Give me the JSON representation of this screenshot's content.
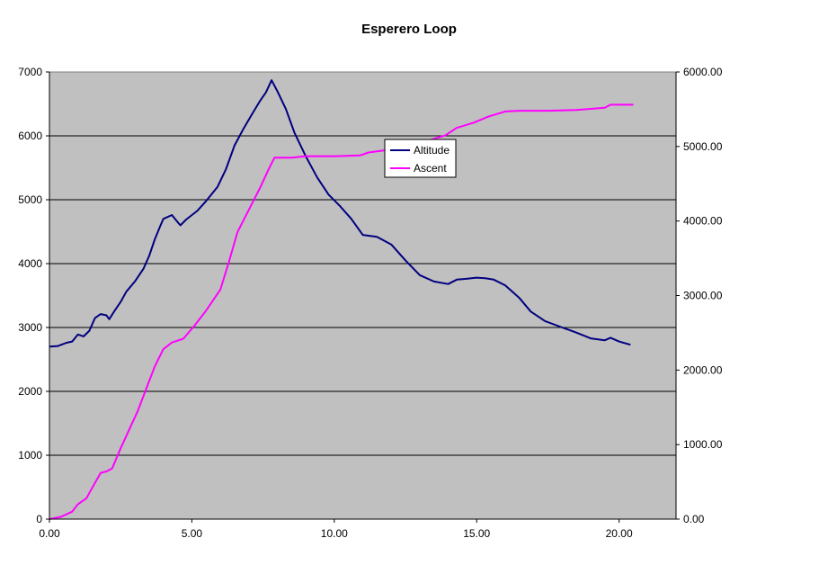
{
  "chart_data": {
    "type": "line",
    "title": "Esperero Loop",
    "xlabel": "",
    "ylabel": "",
    "y2label": "",
    "xlim": [
      0,
      22
    ],
    "ylim": [
      0,
      7000
    ],
    "y2lim": [
      0,
      6000
    ],
    "x_ticks": [
      "0.00",
      "5.00",
      "10.00",
      "15.00",
      "20.00"
    ],
    "y_ticks": [
      "0",
      "1000",
      "2000",
      "3000",
      "4000",
      "5000",
      "6000",
      "7000"
    ],
    "y2_ticks": [
      "0.00",
      "1000.00",
      "2000.00",
      "3000.00",
      "4000.00",
      "5000.00",
      "6000.00"
    ],
    "grid": "horizontal",
    "legend_position": "center",
    "colors": {
      "plot_background": "#c0c0c0",
      "gridline": "#000000",
      "altitude": "#000080",
      "ascent": "#ff00ff"
    },
    "series": [
      {
        "name": "Altitude",
        "axis": "left",
        "color": "#000080",
        "points": [
          [
            0,
            2700
          ],
          [
            0.3,
            2710
          ],
          [
            0.6,
            2760
          ],
          [
            0.8,
            2780
          ],
          [
            1.0,
            2890
          ],
          [
            1.2,
            2860
          ],
          [
            1.4,
            2950
          ],
          [
            1.6,
            3150
          ],
          [
            1.8,
            3210
          ],
          [
            2.0,
            3190
          ],
          [
            2.1,
            3130
          ],
          [
            2.3,
            3270
          ],
          [
            2.5,
            3400
          ],
          [
            2.7,
            3560
          ],
          [
            3.0,
            3720
          ],
          [
            3.3,
            3920
          ],
          [
            3.5,
            4120
          ],
          [
            3.7,
            4380
          ],
          [
            3.9,
            4600
          ],
          [
            4.0,
            4700
          ],
          [
            4.3,
            4760
          ],
          [
            4.5,
            4650
          ],
          [
            4.6,
            4600
          ],
          [
            4.8,
            4690
          ],
          [
            5.2,
            4830
          ],
          [
            5.5,
            4980
          ],
          [
            5.9,
            5200
          ],
          [
            6.2,
            5480
          ],
          [
            6.5,
            5850
          ],
          [
            6.8,
            6100
          ],
          [
            7.1,
            6330
          ],
          [
            7.4,
            6550
          ],
          [
            7.6,
            6680
          ],
          [
            7.8,
            6870
          ],
          [
            8.0,
            6700
          ],
          [
            8.3,
            6420
          ],
          [
            8.6,
            6050
          ],
          [
            9.0,
            5680
          ],
          [
            9.4,
            5350
          ],
          [
            9.8,
            5080
          ],
          [
            10.2,
            4900
          ],
          [
            10.6,
            4700
          ],
          [
            11.0,
            4450
          ],
          [
            11.5,
            4420
          ],
          [
            12.0,
            4300
          ],
          [
            12.5,
            4050
          ],
          [
            13.0,
            3820
          ],
          [
            13.5,
            3720
          ],
          [
            14.0,
            3680
          ],
          [
            14.3,
            3750
          ],
          [
            14.6,
            3760
          ],
          [
            15.0,
            3780
          ],
          [
            15.3,
            3770
          ],
          [
            15.6,
            3750
          ],
          [
            16.0,
            3660
          ],
          [
            16.5,
            3460
          ],
          [
            16.9,
            3250
          ],
          [
            17.4,
            3100
          ],
          [
            18.0,
            3000
          ],
          [
            18.5,
            2920
          ],
          [
            19.0,
            2830
          ],
          [
            19.5,
            2800
          ],
          [
            19.7,
            2840
          ],
          [
            20.0,
            2780
          ],
          [
            20.4,
            2730
          ]
        ]
      },
      {
        "name": "Ascent",
        "axis": "right",
        "color": "#ff00ff",
        "points": [
          [
            0,
            0
          ],
          [
            0.4,
            30
          ],
          [
            0.8,
            100
          ],
          [
            1.0,
            200
          ],
          [
            1.3,
            280
          ],
          [
            1.5,
            420
          ],
          [
            1.8,
            620
          ],
          [
            2.0,
            640
          ],
          [
            2.2,
            680
          ],
          [
            2.5,
            950
          ],
          [
            2.8,
            1200
          ],
          [
            3.1,
            1450
          ],
          [
            3.4,
            1750
          ],
          [
            3.7,
            2050
          ],
          [
            4.0,
            2280
          ],
          [
            4.3,
            2370
          ],
          [
            4.7,
            2420
          ],
          [
            5.1,
            2600
          ],
          [
            5.5,
            2800
          ],
          [
            6.0,
            3080
          ],
          [
            6.3,
            3450
          ],
          [
            6.6,
            3850
          ],
          [
            7.0,
            4150
          ],
          [
            7.4,
            4450
          ],
          [
            7.7,
            4700
          ],
          [
            7.9,
            4850
          ],
          [
            8.5,
            4850
          ],
          [
            9.0,
            4870
          ],
          [
            10.0,
            4870
          ],
          [
            10.9,
            4880
          ],
          [
            11.2,
            4920
          ],
          [
            11.8,
            4950
          ],
          [
            12.5,
            5000
          ],
          [
            13.3,
            5080
          ],
          [
            13.9,
            5150
          ],
          [
            14.3,
            5250
          ],
          [
            14.9,
            5320
          ],
          [
            15.4,
            5400
          ],
          [
            16.0,
            5470
          ],
          [
            16.5,
            5480
          ],
          [
            17.5,
            5480
          ],
          [
            18.5,
            5490
          ],
          [
            19.5,
            5520
          ],
          [
            19.7,
            5560
          ],
          [
            20.5,
            5560
          ]
        ]
      }
    ]
  }
}
